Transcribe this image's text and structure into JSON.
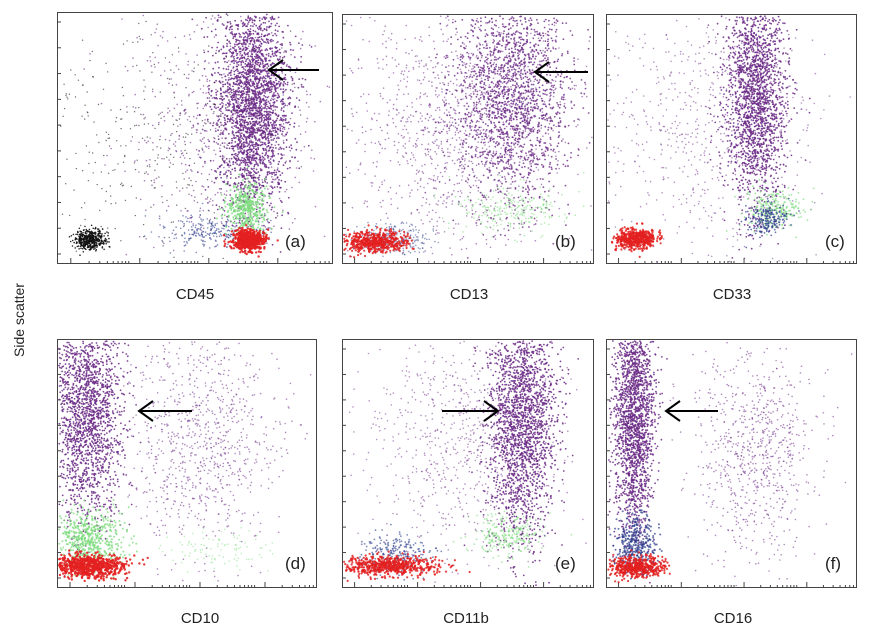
{
  "figure": {
    "ylabel": "Side scatter",
    "colors": {
      "population_main": "#6b2a86",
      "population_red": "#e32020",
      "population_green": "#7ddb7d",
      "population_blue": "#2a3a8a",
      "population_black": "#111111"
    }
  },
  "chart_data": [
    {
      "type": "scatter",
      "panel": "(a)",
      "xlabel": "CD45",
      "arrow": "left"
    },
    {
      "type": "scatter",
      "panel": "(b)",
      "xlabel": "CD13",
      "arrow": "left"
    },
    {
      "type": "scatter",
      "panel": "(c)",
      "xlabel": "CD33",
      "arrow": "none"
    },
    {
      "type": "scatter",
      "panel": "(d)",
      "xlabel": "CD10",
      "arrow": "left"
    },
    {
      "type": "scatter",
      "panel": "(e)",
      "xlabel": "CD11b",
      "arrow": "right"
    },
    {
      "type": "scatter",
      "panel": "(f)",
      "xlabel": "CD16",
      "arrow": "left"
    }
  ]
}
